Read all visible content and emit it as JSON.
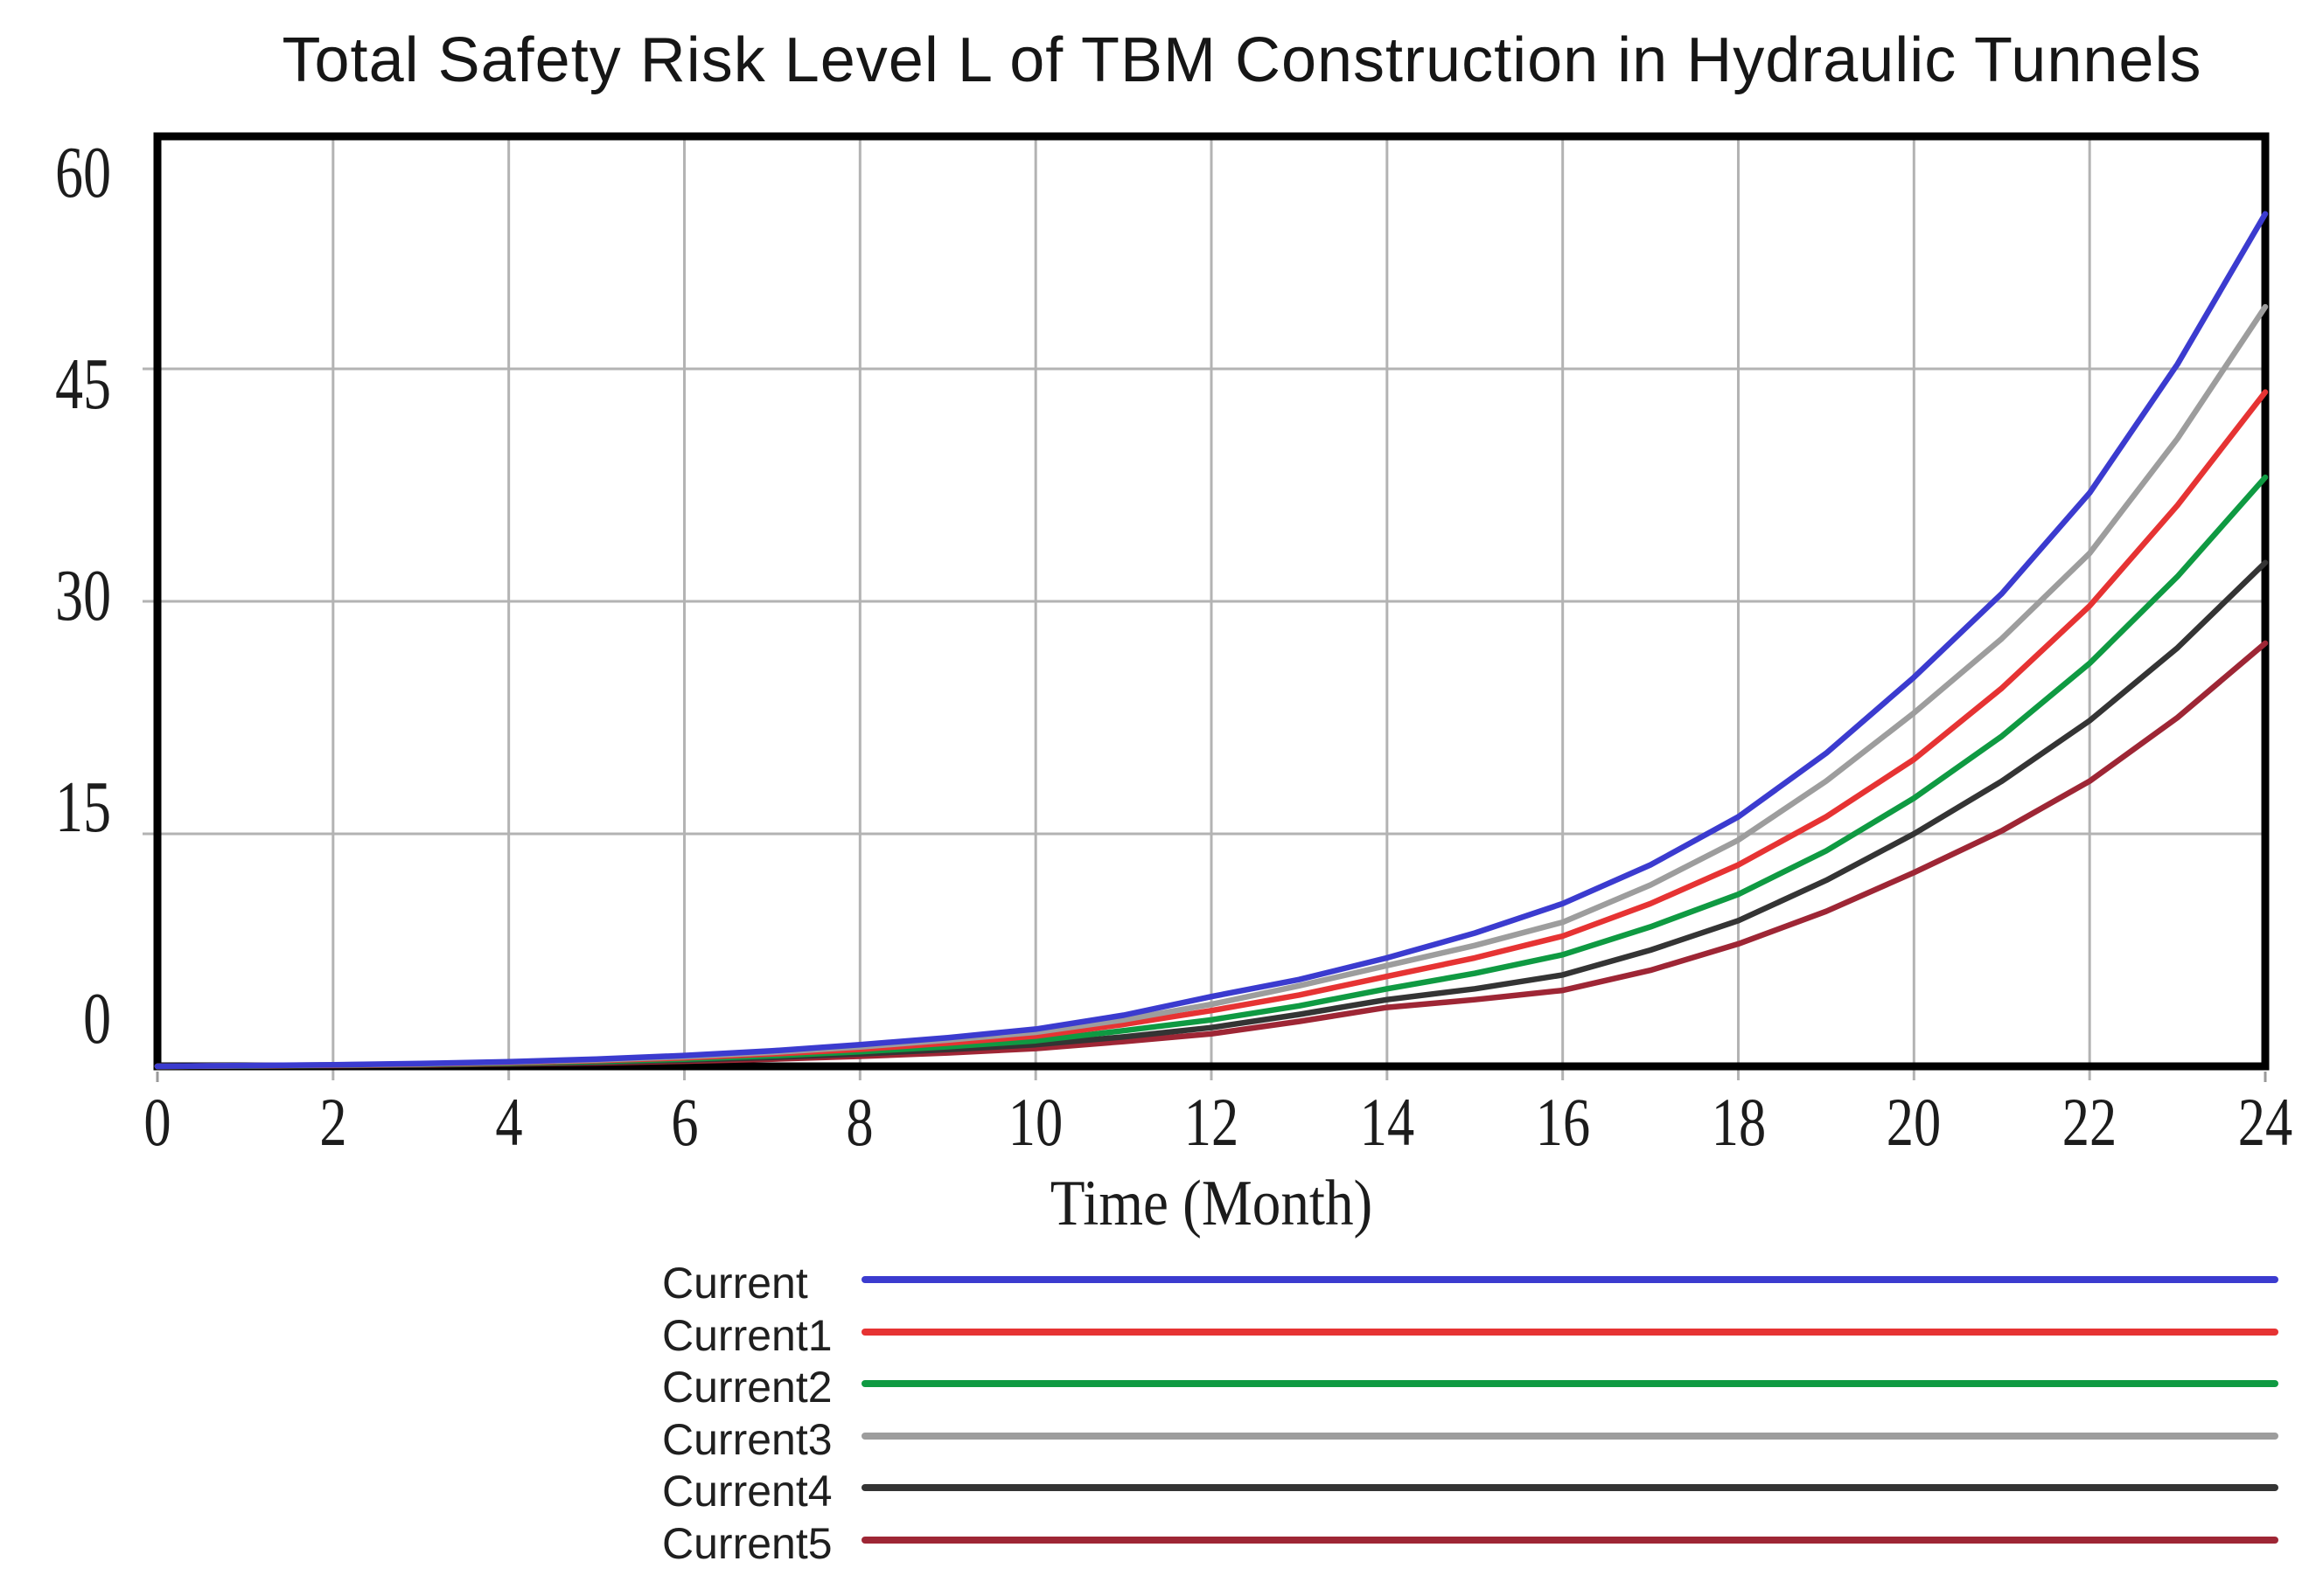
{
  "title": "Total Safety Risk Level L of TBM Construction in Hydraulic Tunnels",
  "colors": {
    "axis": "#000000",
    "grid": "#b3b3b3",
    "tick_stub": "#999999",
    "text": "#1c1c1c",
    "background": "#ffffff"
  },
  "chart_data": {
    "type": "line",
    "title": "Total Safety Risk Level L of TBM Construction in Hydraulic Tunnels",
    "xlabel": "Time (Month)",
    "ylabel": "",
    "xlim": [
      0,
      24
    ],
    "ylim": [
      0,
      60
    ],
    "x_ticks": [
      0,
      2,
      4,
      6,
      8,
      10,
      12,
      14,
      16,
      18,
      20,
      22,
      24
    ],
    "y_ticks": [
      0,
      15,
      30,
      45,
      60
    ],
    "grid": true,
    "legend_position": "below-chart-left",
    "x": [
      0,
      1,
      2,
      3,
      4,
      5,
      6,
      7,
      8,
      9,
      10,
      11,
      12,
      13,
      14,
      15,
      16,
      17,
      18,
      19,
      20,
      21,
      22,
      23,
      24
    ],
    "series": [
      {
        "name": "Current",
        "color": "#3b3bcf",
        "values": [
          0,
          0.05,
          0.1,
          0.18,
          0.3,
          0.46,
          0.7,
          1.0,
          1.4,
          1.85,
          2.4,
          3.3,
          4.5,
          5.6,
          7.0,
          8.6,
          10.5,
          13.0,
          16.1,
          20.2,
          25.1,
          30.5,
          37.0,
          45.3,
          55.0
        ]
      },
      {
        "name": "Current1",
        "color": "#e63333",
        "values": [
          0,
          0.04,
          0.08,
          0.14,
          0.24,
          0.37,
          0.55,
          0.8,
          1.1,
          1.5,
          1.95,
          2.7,
          3.6,
          4.6,
          5.8,
          7.0,
          8.4,
          10.5,
          13.0,
          16.1,
          19.8,
          24.4,
          29.7,
          36.2,
          43.5
        ]
      },
      {
        "name": "Current2",
        "color": "#0f9a42",
        "values": [
          0,
          0.03,
          0.07,
          0.12,
          0.2,
          0.31,
          0.47,
          0.68,
          0.95,
          1.27,
          1.65,
          2.3,
          3.0,
          3.9,
          5.0,
          6.0,
          7.2,
          9.0,
          11.1,
          13.9,
          17.3,
          21.3,
          26.0,
          31.6,
          38.0
        ]
      },
      {
        "name": "Current3",
        "color": "#9d9d9d",
        "values": [
          0,
          0.04,
          0.09,
          0.16,
          0.27,
          0.42,
          0.62,
          0.9,
          1.25,
          1.7,
          2.2,
          3.0,
          4.0,
          5.2,
          6.5,
          7.8,
          9.3,
          11.7,
          14.6,
          18.4,
          22.8,
          27.6,
          33.1,
          40.5,
          49.0
        ]
      },
      {
        "name": "Current4",
        "color": "#343434",
        "values": [
          0,
          0.03,
          0.06,
          0.11,
          0.18,
          0.27,
          0.4,
          0.58,
          0.8,
          1.08,
          1.4,
          1.9,
          2.5,
          3.35,
          4.3,
          5.0,
          5.9,
          7.5,
          9.4,
          12.0,
          15.0,
          18.4,
          22.3,
          27.0,
          32.5
        ]
      },
      {
        "name": "Current5",
        "color": "#9e2635",
        "values": [
          0,
          0.02,
          0.05,
          0.09,
          0.15,
          0.22,
          0.33,
          0.47,
          0.65,
          0.87,
          1.15,
          1.6,
          2.1,
          2.9,
          3.8,
          4.3,
          4.9,
          6.2,
          7.9,
          10.0,
          12.5,
          15.2,
          18.4,
          22.5,
          27.3
        ]
      }
    ],
    "draw_order": [
      5,
      4,
      2,
      1,
      3,
      0
    ]
  }
}
